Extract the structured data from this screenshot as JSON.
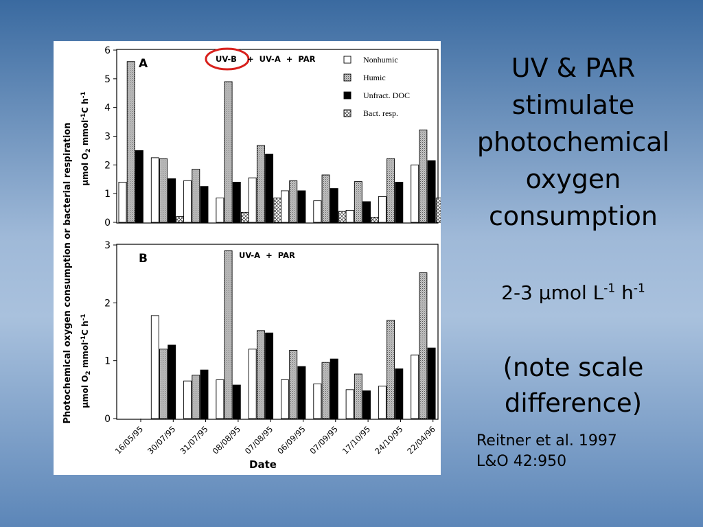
{
  "slide": {
    "title": "UV & PAR\nstimulate\nphotochemical\noxygen\nconsumption",
    "rate": {
      "prefix": "2-3 µmol L",
      "sup1": "-1",
      "mid": " h",
      "sup2": "-1"
    },
    "note": "(note scale\ndifference)",
    "citation": "Reitner et al. 1997\n L&O 42:950"
  },
  "colors": {
    "highlight_circle": "#d8201c",
    "humic_fill": "#b0b0b0",
    "unfract_fill": "#000000",
    "nonhumic_fill": "#ffffff"
  },
  "chart_data": [
    {
      "type": "bar",
      "panel": "A",
      "treatment": {
        "part1": "UV-B",
        "part2": "+  UV-A  +  PAR"
      },
      "ylabel": "µmol O2 mmol-1C h-1",
      "ylabel_main": "µmol O",
      "ylabel_sub": "2",
      "ylabel_rest": " mmol",
      "ylabel_sup1": "-1",
      "ylabel_c": "C h",
      "ylabel_sup2": "-1",
      "shared_ylabel": "Photochemical oxygen consumption or bacterial respiration",
      "ylim": [
        0,
        6
      ],
      "yticks": [
        "0",
        "1",
        "2",
        "3",
        "4",
        "5",
        "6"
      ],
      "legend_position": "top-right",
      "categories": [
        "16/05/95",
        "30/07/95",
        "31/07/95",
        "08/08/95",
        "07/08/95",
        "06/09/95",
        "07/09/95",
        "17/10/95",
        "24/10/95",
        "22/04/96"
      ],
      "series": [
        {
          "name": "Nonhumic",
          "pattern": "white",
          "values": [
            1.4,
            2.25,
            1.45,
            0.85,
            1.55,
            1.1,
            0.75,
            0.42,
            0.9,
            2.0
          ]
        },
        {
          "name": "Humic",
          "pattern": "stipple",
          "values": [
            5.6,
            2.22,
            1.85,
            4.9,
            2.68,
            1.45,
            1.65,
            1.42,
            2.22,
            3.22
          ]
        },
        {
          "name": "Unfract. DOC",
          "pattern": "black",
          "values": [
            2.5,
            1.52,
            1.25,
            1.4,
            2.38,
            1.1,
            1.18,
            0.72,
            1.4,
            2.15
          ]
        },
        {
          "name": "Bact. resp.",
          "pattern": "hatch",
          "values": [
            null,
            0.2,
            null,
            0.35,
            0.85,
            null,
            0.38,
            0.18,
            null,
            0.85
          ]
        }
      ]
    },
    {
      "type": "bar",
      "panel": "B",
      "treatment": {
        "part1": "",
        "part2": "UV-A  +  PAR"
      },
      "ylabel": "µmol O2 mmol-1C h-1",
      "ylabel_main": "µmol O",
      "ylabel_sub": "2",
      "ylabel_rest": " mmol",
      "ylabel_sup1": "-1",
      "ylabel_c": "C h",
      "ylabel_sup2": "-1",
      "xlabel": "Date",
      "ylim": [
        0,
        3
      ],
      "yticks": [
        "0",
        "1",
        "2",
        "3"
      ],
      "categories": [
        "16/05/95",
        "30/07/95",
        "31/07/95",
        "08/08/95",
        "07/08/95",
        "06/09/95",
        "07/09/95",
        "17/10/95",
        "24/10/95",
        "22/04/96"
      ],
      "series": [
        {
          "name": "Nonhumic",
          "pattern": "white",
          "values": [
            null,
            1.78,
            0.65,
            0.67,
            1.2,
            0.67,
            0.6,
            0.5,
            0.56,
            1.1
          ]
        },
        {
          "name": "Humic",
          "pattern": "stipple",
          "values": [
            null,
            1.2,
            0.75,
            2.9,
            1.52,
            1.18,
            0.97,
            0.77,
            1.7,
            2.52
          ]
        },
        {
          "name": "Unfract. DOC",
          "pattern": "black",
          "values": [
            null,
            1.27,
            0.84,
            0.58,
            1.48,
            0.9,
            1.03,
            0.48,
            0.86,
            1.22
          ]
        }
      ]
    }
  ]
}
